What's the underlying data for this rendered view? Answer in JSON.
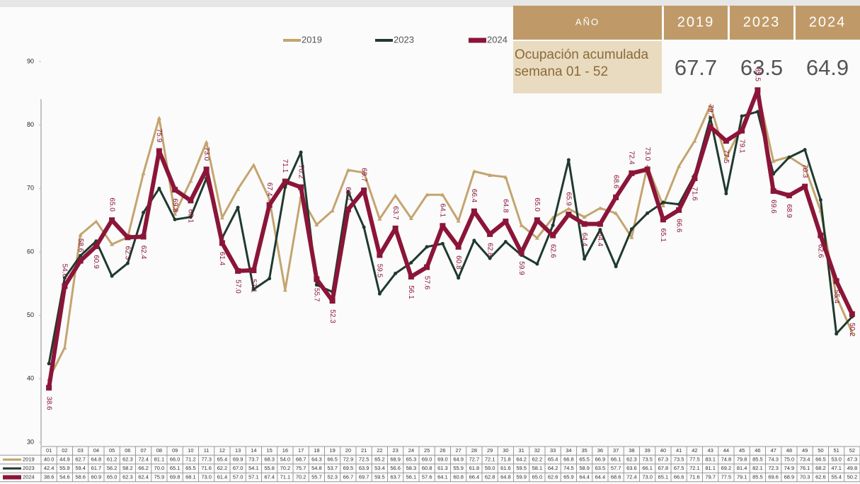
{
  "chart_data": {
    "type": "line",
    "categories": [
      "01",
      "02",
      "03",
      "04",
      "05",
      "06",
      "07",
      "08",
      "09",
      "10",
      "11",
      "12",
      "13",
      "14",
      "15",
      "16",
      "17",
      "18",
      "19",
      "20",
      "21",
      "22",
      "23",
      "24",
      "25",
      "26",
      "27",
      "28",
      "29",
      "30",
      "31",
      "32",
      "33",
      "34",
      "35",
      "36",
      "37",
      "38",
      "39",
      "40",
      "41",
      "42",
      "43",
      "44",
      "45",
      "46",
      "47",
      "48",
      "49",
      "50",
      "51",
      "52"
    ],
    "ylim": [
      30,
      90
    ],
    "yticks": [
      30,
      40,
      50,
      60,
      70,
      80,
      90
    ],
    "series": [
      {
        "name": "2019",
        "color": "#c4a46f",
        "values": [
          40.0,
          44.9,
          62.7,
          64.8,
          61.2,
          62.3,
          72.4,
          81.1,
          66.0,
          71.2,
          77.3,
          65.4,
          69.9,
          73.7,
          68.3,
          54.0,
          68.7,
          64.3,
          66.5,
          72.9,
          72.5,
          65.2,
          68.9,
          65.3,
          69.0,
          69.0,
          64.9,
          72.7,
          72.1,
          71.8,
          64.2,
          62.2,
          65.4,
          66.8,
          65.5,
          66.9,
          66.1,
          62.3,
          73.5,
          67.3,
          73.5,
          77.5,
          83.1,
          74.8,
          79.8,
          85.5,
          74.3,
          75.0,
          73.4,
          66.5,
          53.0,
          47.3
        ],
        "value_labels": [
          "40.0",
          "44.9",
          "62.7",
          "64.8",
          "61.2",
          "62.3",
          "72.4",
          "81.1",
          "66.0",
          "71.2",
          "77.3",
          "65.4",
          "69.9",
          "73.7",
          "68.3",
          "54.0",
          "68.7",
          "64.3",
          "66.5",
          "72.9",
          "72.5",
          "65.2",
          "68.9",
          "65.3",
          "69.0",
          "69.0",
          "64.9",
          "72.7",
          "72.1",
          "71.8",
          "64.2",
          "62.2",
          "65.4",
          "66.8",
          "65.5",
          "66.9",
          "66.1",
          "62.3",
          "73.5",
          "67.3",
          "73.5",
          "77.5",
          "83.1",
          "74.8",
          "79.8",
          "85.5",
          "74.3",
          "75.0",
          "73.4",
          "66.5",
          "53.0",
          "47.3"
        ]
      },
      {
        "name": "2023",
        "color": "#1f3a2e",
        "values": [
          42.4,
          55.9,
          59.4,
          61.7,
          56.2,
          58.2,
          66.2,
          70.0,
          65.1,
          65.5,
          71.6,
          62.2,
          67.0,
          54.1,
          55.8,
          70.2,
          75.7,
          54.8,
          53.7,
          69.5,
          63.9,
          53.4,
          56.6,
          58.3,
          60.8,
          61.3,
          55.9,
          61.8,
          59.0,
          61.6,
          59.5,
          58.1,
          64.2,
          74.5,
          58.9,
          63.5,
          57.7,
          63.6,
          66.1,
          67.8,
          67.5,
          72.1,
          81.1,
          69.2,
          81.4,
          82.1,
          72.3,
          74.9,
          76.1,
          68.2,
          47.1,
          49.8
        ],
        "value_labels": [
          "42.4",
          "55.9",
          "59.4",
          "61.7",
          "56.2",
          "58.2",
          "66.2",
          "70.0",
          "65.1",
          "65.5",
          "71.6",
          "62.2",
          "67.0",
          "54.1",
          "55.8",
          "70.2",
          "75.7",
          "54.8",
          "53.7",
          "69.5",
          "63.9",
          "53.4",
          "56.6",
          "58.3",
          "60.8",
          "61.3",
          "55.9",
          "61.8",
          "59.0",
          "61.6",
          "59.5",
          "58.1",
          "64.2",
          "74.5",
          "58.9",
          "63.5",
          "57.7",
          "63.6",
          "66.1",
          "67.8",
          "67.5",
          "72.1",
          "81.1",
          "69.2",
          "81.4",
          "82.1",
          "72.3",
          "74.9",
          "76.1",
          "68.2",
          "47.1",
          "49.8"
        ]
      },
      {
        "name": "2024",
        "color": "#8b1538",
        "values": [
          38.6,
          54.6,
          58.6,
          60.9,
          65.0,
          62.3,
          62.4,
          75.9,
          69.8,
          68.1,
          73.0,
          61.4,
          57.0,
          57.1,
          67.4,
          71.1,
          70.2,
          55.7,
          52.3,
          66.7,
          69.7,
          59.5,
          63.7,
          56.1,
          57.6,
          64.1,
          60.8,
          66.4,
          62.8,
          64.8,
          59.9,
          65.0,
          62.6,
          65.9,
          64.4,
          64.4,
          68.6,
          72.4,
          73.0,
          65.1,
          66.6,
          71.6,
          79.7,
          77.5,
          79.1,
          85.5,
          69.6,
          68.9,
          70.3,
          62.6,
          55.4,
          50.2
        ],
        "value_labels": [
          "38.6",
          "54.6",
          "58.6",
          "60.9",
          "65.0",
          "62.3",
          "62.4",
          "75.9",
          "69.8",
          "68.1",
          "73.0",
          "61.4",
          "57.0",
          "57.1",
          "67.4",
          "71.1",
          "70.2",
          "55.7",
          "52.3",
          "66.7",
          "69.7",
          "59.5",
          "63.7",
          "56.1",
          "57.6",
          "64.1",
          "60.8",
          "66.4",
          "62.8",
          "64.8",
          "59.9",
          "65.0",
          "62.6",
          "65.9",
          "64.4",
          "64.4",
          "68.6",
          "72.4",
          "73.0",
          "65.1",
          "66.6",
          "71.6",
          "79.7",
          "77.5",
          "79.1",
          "85.5",
          "69.6",
          "68.9",
          "70.3",
          "62.6",
          "55.4",
          "50.2"
        ]
      }
    ]
  },
  "summary": {
    "headers": [
      "AÑO",
      "2019",
      "2023",
      "2024"
    ],
    "row_label": "Ocupación acumulada semana 01 - 52",
    "values": [
      "67.7",
      "63.5",
      "64.9"
    ]
  }
}
